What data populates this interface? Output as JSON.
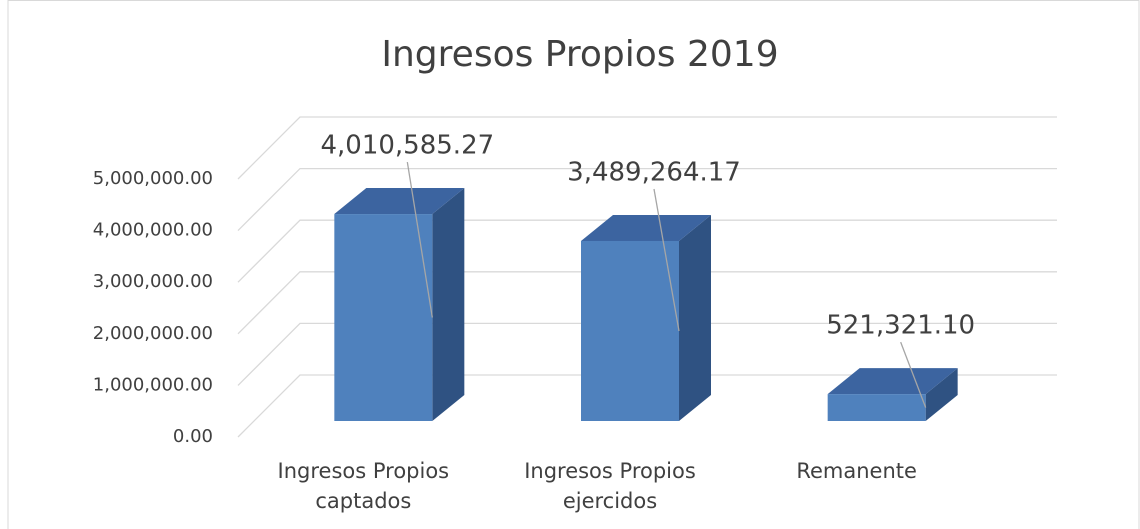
{
  "chart_data": {
    "type": "bar3d",
    "title": "Ingresos Propios 2019",
    "categories": [
      "Ingresos Propios captados",
      "Ingresos Propios ejercidos",
      "Remanente"
    ],
    "values": [
      4010585.27,
      3489264.17,
      521321.1
    ],
    "value_labels": [
      "4,010,585.27",
      "3,489,264.17",
      "521,321.10"
    ],
    "color": "#4f81bd",
    "ylim": [
      0,
      5000000
    ],
    "yticks": [
      {
        "value": 0,
        "label": "0.00"
      },
      {
        "value": 1000000,
        "label": "1,000,000.00"
      },
      {
        "value": 2000000,
        "label": "2,000,000.00"
      },
      {
        "value": 3000000,
        "label": "3,000,000.00"
      },
      {
        "value": 4000000,
        "label": "4,000,000.00"
      },
      {
        "value": 5000000,
        "label": "5,000,000.00"
      }
    ],
    "grid": true
  }
}
